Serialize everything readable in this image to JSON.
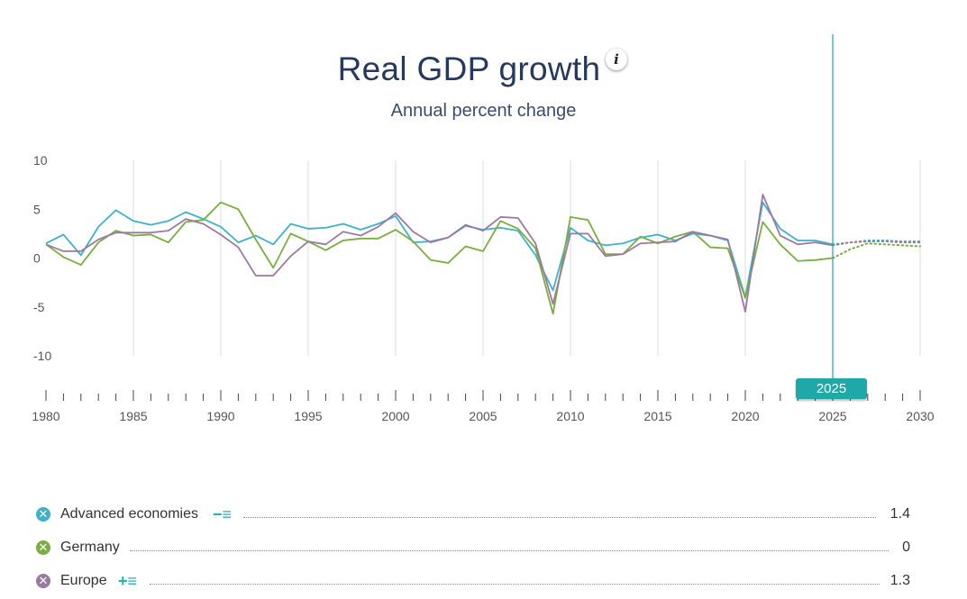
{
  "header": {
    "title": "Real GDP growth",
    "subtitle": "Annual percent change",
    "info_icon": "i"
  },
  "selected_year": "2025",
  "legend": [
    {
      "name": "Advanced economies",
      "value": "1.4",
      "color": "#3fb1c9",
      "mark": "x",
      "controls": "−≡"
    },
    {
      "name": "Germany",
      "value": "0",
      "color": "#7aad42",
      "mark": "x",
      "controls": ""
    },
    {
      "name": "Europe",
      "value": "1.3",
      "color": "#9b7aa0",
      "mark": "x",
      "controls": "+≡"
    }
  ],
  "chart_data": {
    "type": "line",
    "title": "Real GDP growth",
    "subtitle": "Annual percent change",
    "xlabel": "",
    "ylabel": "",
    "xlim": [
      1980,
      2030
    ],
    "ylim": [
      -10,
      10
    ],
    "y_ticks": [
      "10",
      "5",
      "0",
      "-5",
      "-10"
    ],
    "x_ticks": [
      "1980",
      "1985",
      "1990",
      "1995",
      "2000",
      "2005",
      "2010",
      "2015",
      "2020",
      "2025",
      "2030"
    ],
    "projection_start": 2025,
    "series": [
      {
        "name": "Advanced economies",
        "color": "#3fb1c9",
        "x": [
          1980,
          1981,
          1982,
          1983,
          1984,
          1985,
          1986,
          1987,
          1988,
          1989,
          1990,
          1991,
          1992,
          1993,
          1994,
          1995,
          1996,
          1997,
          1998,
          1999,
          2000,
          2001,
          2002,
          2003,
          2004,
          2005,
          2006,
          2007,
          2008,
          2009,
          2010,
          2011,
          2012,
          2013,
          2014,
          2015,
          2016,
          2017,
          2018,
          2019,
          2020,
          2021,
          2022,
          2023,
          2024,
          2025,
          2026,
          2027,
          2028,
          2029,
          2030
        ],
        "values": [
          1.5,
          2.4,
          0.3,
          3.2,
          4.9,
          3.8,
          3.4,
          3.8,
          4.7,
          4.0,
          3.2,
          1.6,
          2.3,
          1.4,
          3.5,
          3.0,
          3.1,
          3.5,
          2.9,
          3.5,
          4.3,
          1.6,
          1.7,
          2.1,
          3.3,
          2.9,
          3.1,
          2.8,
          0.3,
          -3.3,
          3.1,
          1.8,
          1.3,
          1.5,
          2.1,
          2.4,
          1.8,
          2.5,
          2.3,
          1.8,
          -4.0,
          5.7,
          3.0,
          1.8,
          1.8,
          1.4,
          1.6,
          1.8,
          1.8,
          1.7,
          1.7
        ]
      },
      {
        "name": "Germany",
        "color": "#7aad42",
        "x": [
          1980,
          1981,
          1982,
          1983,
          1984,
          1985,
          1986,
          1987,
          1988,
          1989,
          1990,
          1991,
          1992,
          1993,
          1994,
          1995,
          1996,
          1997,
          1998,
          1999,
          2000,
          2001,
          2002,
          2003,
          2004,
          2005,
          2006,
          2007,
          2008,
          2009,
          2010,
          2011,
          2012,
          2013,
          2014,
          2015,
          2016,
          2017,
          2018,
          2019,
          2020,
          2021,
          2022,
          2023,
          2024,
          2025,
          2026,
          2027,
          2028,
          2029,
          2030
        ],
        "values": [
          1.4,
          0.1,
          -0.7,
          1.6,
          2.8,
          2.3,
          2.4,
          1.6,
          3.7,
          3.9,
          5.7,
          5.0,
          1.9,
          -1.0,
          2.5,
          1.7,
          0.8,
          1.8,
          2.0,
          2.0,
          2.9,
          1.7,
          -0.2,
          -0.5,
          1.2,
          0.7,
          3.8,
          3.0,
          1.0,
          -5.7,
          4.2,
          3.9,
          0.4,
          0.4,
          2.2,
          1.5,
          2.2,
          2.7,
          1.1,
          1.0,
          -4.1,
          3.7,
          1.4,
          -0.3,
          -0.2,
          0.0,
          0.9,
          1.5,
          1.4,
          1.3,
          1.2
        ]
      },
      {
        "name": "Europe",
        "color": "#9b7aa0",
        "x": [
          1980,
          1981,
          1982,
          1983,
          1984,
          1985,
          1986,
          1987,
          1988,
          1989,
          1990,
          1991,
          1992,
          1993,
          1994,
          1995,
          1996,
          1997,
          1998,
          1999,
          2000,
          2001,
          2002,
          2003,
          2004,
          2005,
          2006,
          2007,
          2008,
          2009,
          2010,
          2011,
          2012,
          2013,
          2014,
          2015,
          2016,
          2017,
          2018,
          2019,
          2020,
          2021,
          2022,
          2023,
          2024,
          2025,
          2026,
          2027,
          2028,
          2029,
          2030
        ],
        "values": [
          1.4,
          0.7,
          0.7,
          1.9,
          2.6,
          2.6,
          2.6,
          2.8,
          4.0,
          3.5,
          2.4,
          1.1,
          -1.8,
          -1.8,
          0.2,
          1.7,
          1.4,
          2.7,
          2.3,
          3.2,
          4.6,
          2.7,
          1.6,
          2.1,
          3.4,
          2.8,
          4.2,
          4.1,
          1.5,
          -4.7,
          2.5,
          2.5,
          0.2,
          0.4,
          1.5,
          1.6,
          1.7,
          2.7,
          2.3,
          1.9,
          -5.5,
          6.5,
          2.3,
          1.4,
          1.6,
          1.3,
          1.6,
          1.7,
          1.7,
          1.6,
          1.6
        ]
      }
    ]
  }
}
